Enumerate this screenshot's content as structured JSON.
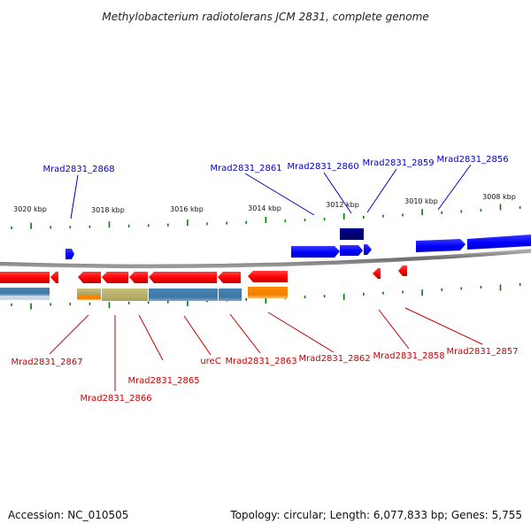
{
  "title": "Methylobacterium radiotolerans JCM 2831, complete genome",
  "footer": {
    "accession": "Accession: NC_010505",
    "summary": "Topology: circular; Length: 6,077,833 bp; Genes: 5,755"
  },
  "scale_labels": [
    "3020 kbp",
    "3018 kbp",
    "3016 kbp",
    "3014 kbp",
    "3012 kbp",
    "3010 kbp",
    "3008 kbp"
  ],
  "forward_labels": [
    "Mrad2831_2868",
    "Mrad2831_2861",
    "Mrad2831_2860",
    "Mrad2831_2859",
    "Mrad2831_2856"
  ],
  "reverse_labels": [
    "Mrad2831_2867",
    "Mrad2831_2866",
    "Mrad2831_2865",
    "ureC",
    "Mrad2831_2863",
    "Mrad2831_2862",
    "Mrad2831_2858",
    "Mrad2831_2857"
  ],
  "colors": {
    "forward": "#0000ff",
    "reverse": "#ff0000",
    "forward_label": "#0000c8",
    "reverse_label": "#c80000",
    "tick": "#008000",
    "backbone": "#808080",
    "dark_feature": "#00007a",
    "steel": "#4682b4",
    "orange": "#ff8c00",
    "khaki": "#bdb76b"
  }
}
